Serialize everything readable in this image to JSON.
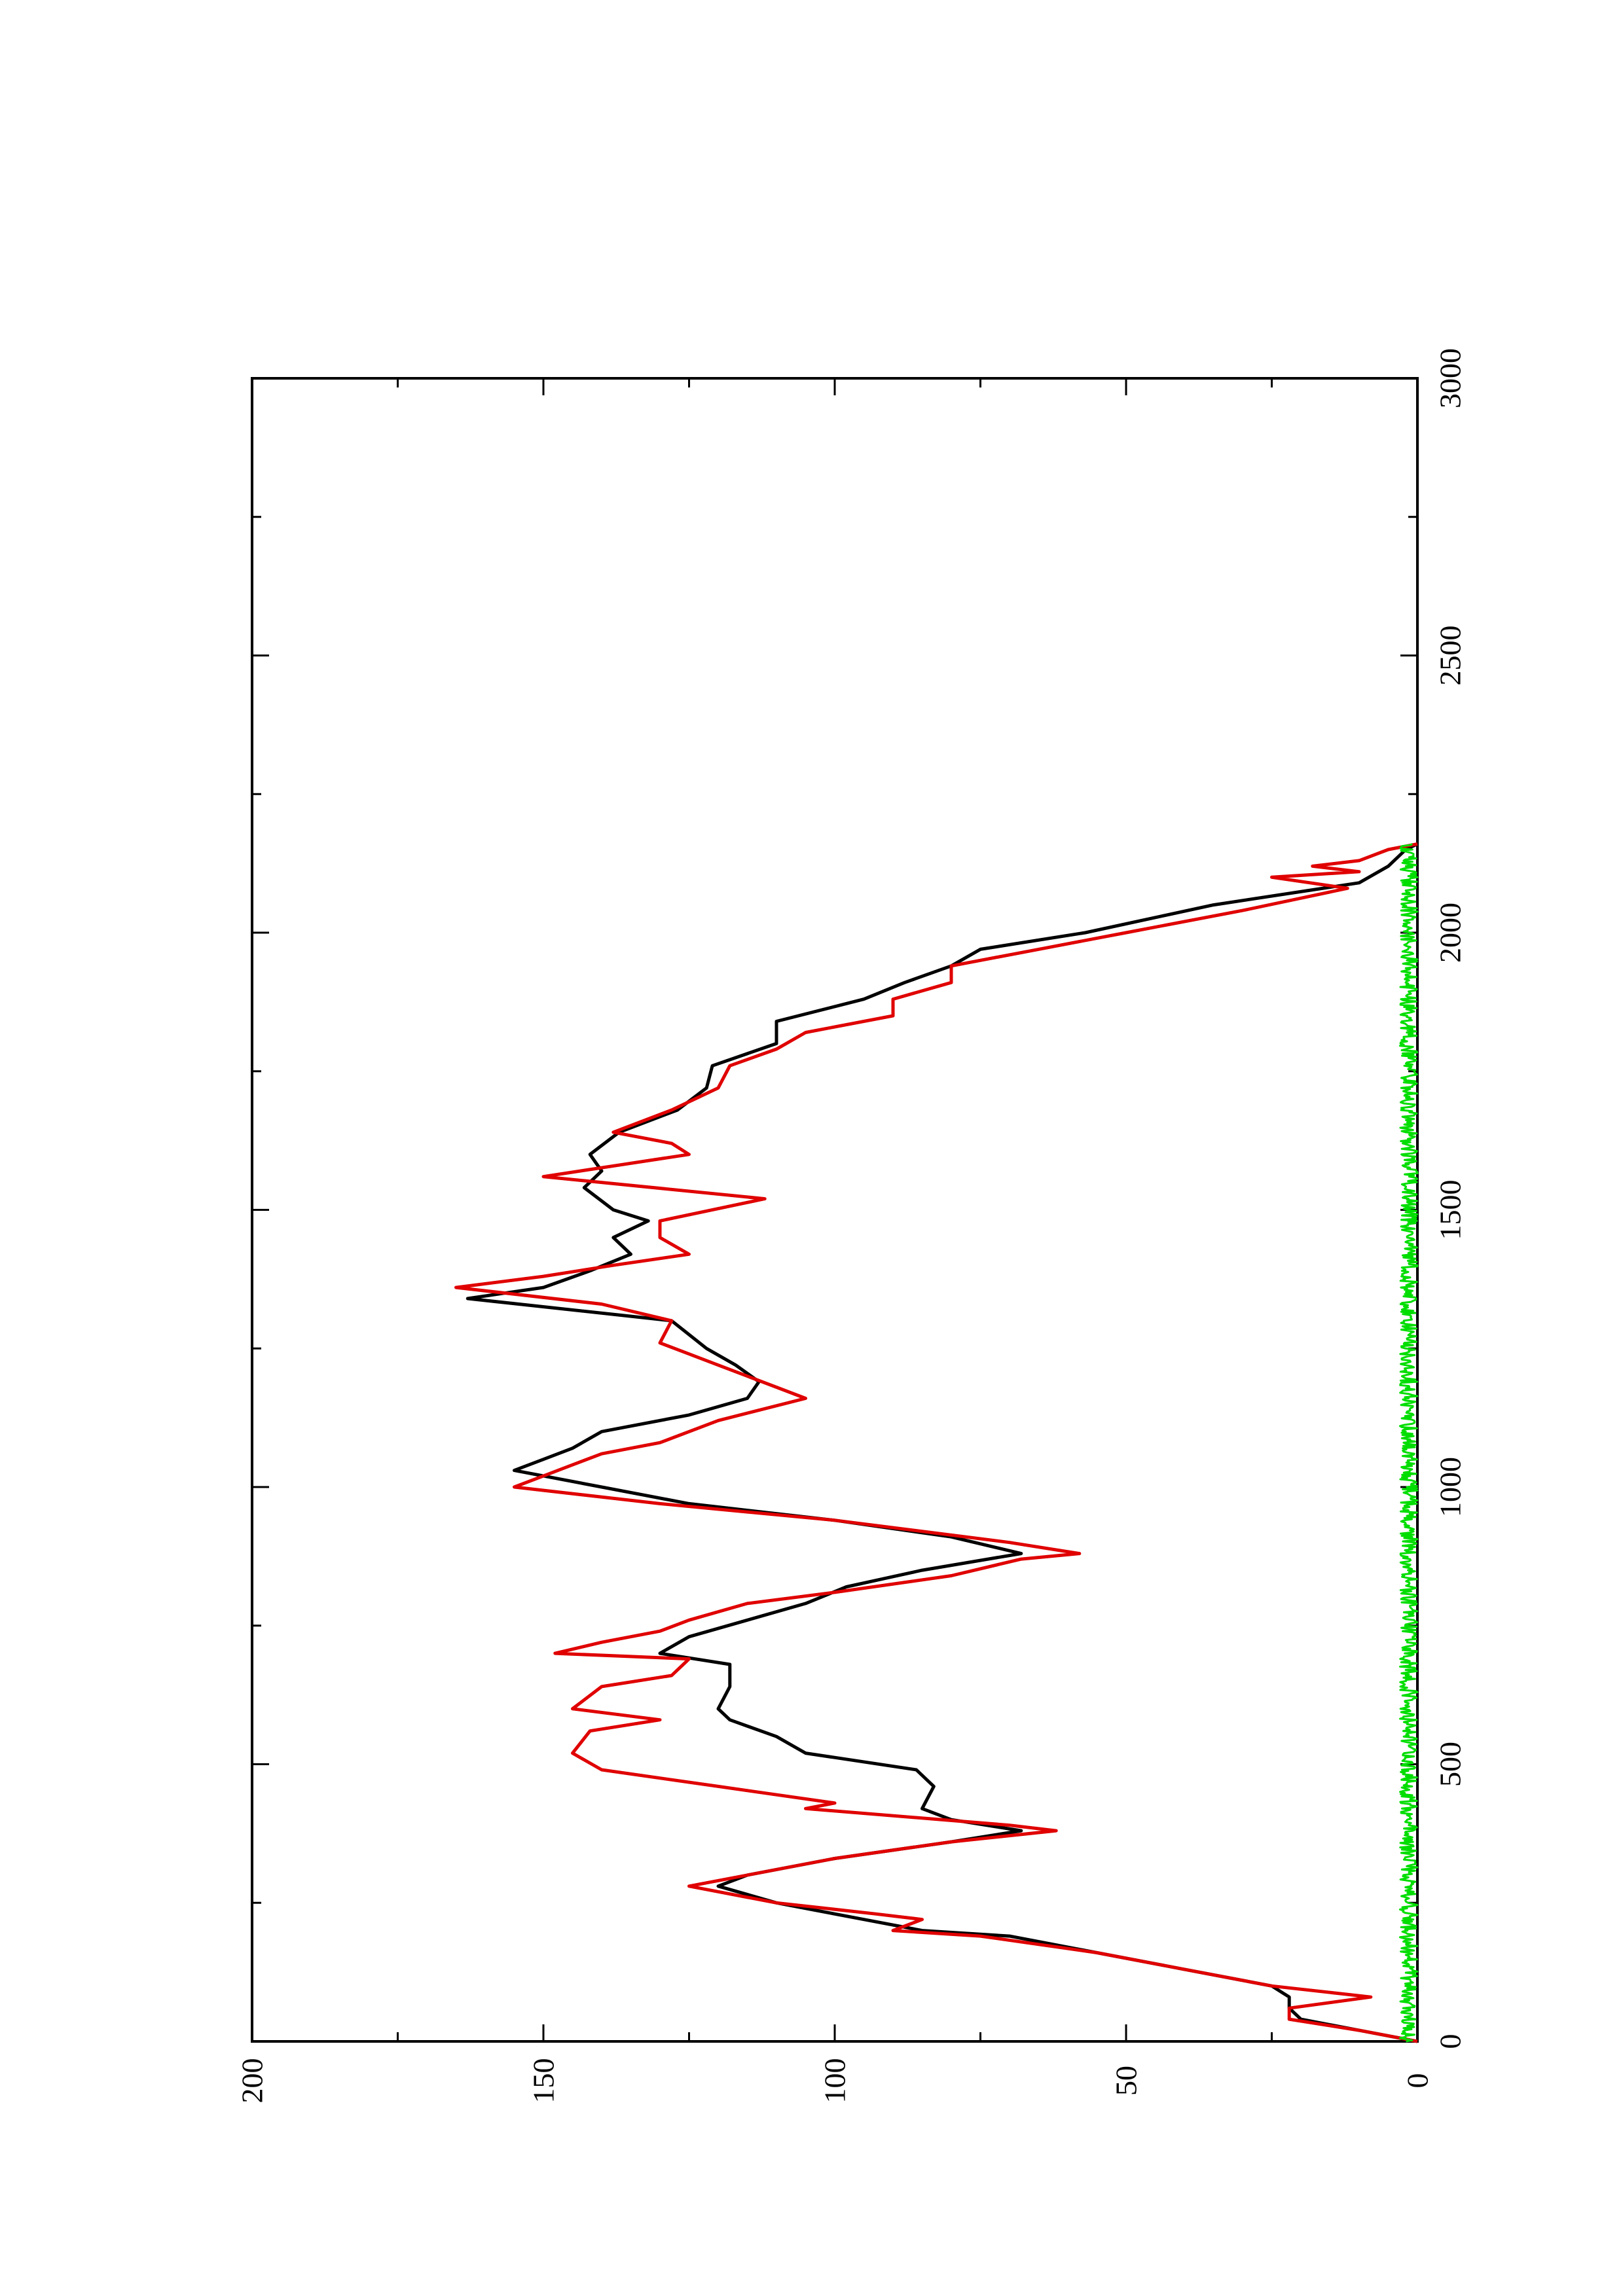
{
  "chart_data": {
    "type": "line",
    "title": "",
    "xlabel": "",
    "ylabel": "",
    "orientation": "rotated 90° counter-clockwise on the page (x axis runs bottom-to-top on the right edge, y axis runs right-to-left along the bottom)",
    "xlim": [
      0,
      3000
    ],
    "ylim": [
      0,
      200
    ],
    "x_ticks": [
      0,
      500,
      1000,
      1500,
      2000,
      2500,
      3000
    ],
    "x_tick_labels": [
      "0",
      "500",
      "1000",
      "1500",
      "2000",
      "2500",
      "3000"
    ],
    "y_ticks": [
      0,
      50,
      100,
      150,
      200
    ],
    "y_tick_labels": [
      "0",
      "50",
      "100",
      "150",
      "200"
    ],
    "grid": false,
    "legend": "none",
    "series": [
      {
        "color": "#000000",
        "x": [
          0,
          20,
          40,
          60,
          80,
          100,
          130,
          160,
          190,
          200,
          220,
          250,
          280,
          300,
          330,
          360,
          380,
          400,
          420,
          440,
          460,
          490,
          520,
          550,
          580,
          600,
          640,
          680,
          700,
          730,
          760,
          790,
          820,
          850,
          880,
          910,
          940,
          970,
          1000,
          1030,
          1050,
          1070,
          1100,
          1130,
          1160,
          1190,
          1220,
          1250,
          1300,
          1340,
          1360,
          1390,
          1420,
          1450,
          1480,
          1500,
          1540,
          1570,
          1600,
          1640,
          1680,
          1720,
          1760,
          1800,
          1840,
          1880,
          1910,
          1940,
          1970,
          2000,
          2050,
          2090,
          2120,
          2150,
          2160
        ],
        "y": [
          0,
          10,
          20,
          22,
          22,
          25,
          40,
          55,
          70,
          85,
          95,
          110,
          120,
          115,
          100,
          80,
          68,
          80,
          85,
          84,
          83,
          86,
          105,
          110,
          118,
          120,
          118,
          118,
          130,
          125,
          115,
          105,
          98,
          85,
          68,
          80,
          100,
          125,
          140,
          155,
          150,
          145,
          140,
          125,
          115,
          113,
          117,
          122,
          128,
          163,
          150,
          142,
          135,
          138,
          132,
          138,
          143,
          140,
          142,
          137,
          127,
          122,
          121,
          110,
          110,
          95,
          88,
          80,
          75,
          57,
          35,
          10,
          5,
          2,
          0
        ]
      },
      {
        "color": "#e00000",
        "x": [
          0,
          20,
          40,
          60,
          80,
          100,
          130,
          160,
          190,
          200,
          220,
          230,
          250,
          270,
          280,
          300,
          330,
          360,
          380,
          390,
          420,
          430,
          460,
          490,
          520,
          560,
          580,
          600,
          640,
          660,
          690,
          700,
          720,
          740,
          760,
          790,
          810,
          840,
          870,
          880,
          900,
          940,
          970,
          1000,
          1020,
          1040,
          1060,
          1080,
          1120,
          1160,
          1180,
          1200,
          1220,
          1240,
          1260,
          1300,
          1330,
          1360,
          1380,
          1400,
          1420,
          1450,
          1480,
          1520,
          1560,
          1600,
          1620,
          1640,
          1680,
          1720,
          1760,
          1790,
          1820,
          1850,
          1880,
          1910,
          1940,
          1970,
          2000,
          2040,
          2080,
          2100,
          2110,
          2120,
          2130,
          2150,
          2160
        ],
        "y": [
          0,
          10,
          22,
          22,
          8,
          25,
          40,
          55,
          75,
          90,
          85,
          93,
          110,
          120,
          125,
          115,
          100,
          80,
          62,
          70,
          105,
          100,
          120,
          140,
          145,
          142,
          130,
          145,
          140,
          128,
          125,
          148,
          140,
          130,
          125,
          115,
          100,
          80,
          68,
          58,
          70,
          100,
          130,
          155,
          150,
          145,
          140,
          130,
          120,
          105,
          110,
          115,
          120,
          125,
          130,
          128,
          140,
          165,
          150,
          138,
          125,
          130,
          130,
          112,
          150,
          125,
          128,
          138,
          128,
          120,
          118,
          110,
          105,
          90,
          90,
          80,
          80,
          65,
          50,
          30,
          12,
          25,
          10,
          18,
          10,
          5,
          0
        ]
      },
      {
        "color": "#00dd00",
        "x": [
          0,
          2160
        ],
        "y": [
          1,
          1
        ],
        "noisy": true,
        "noise_range": [
          0,
          3
        ]
      }
    ]
  }
}
